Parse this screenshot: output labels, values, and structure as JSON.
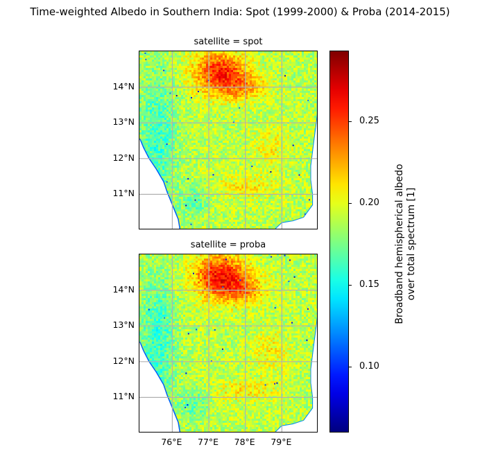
{
  "figure": {
    "title": "Time-weighted Albedo in Southern India: Spot (1999-2000) & Proba (2014-2015)"
  },
  "panels": [
    {
      "title": "satellite = spot",
      "satellite": "spot"
    },
    {
      "title": "satellite = proba",
      "satellite": "proba"
    }
  ],
  "map": {
    "lon_range": [
      75.1,
      80.0
    ],
    "lat_range": [
      10.0,
      15.0
    ],
    "gridlines": true,
    "x_ticks": [
      {
        "value": 76,
        "label": "76°E"
      },
      {
        "value": 77,
        "label": "77°E"
      },
      {
        "value": 78,
        "label": "78°E"
      },
      {
        "value": 79,
        "label": "79°E"
      }
    ],
    "y_ticks": [
      {
        "value": 14,
        "label": "14°N"
      },
      {
        "value": 13,
        "label": "13°N"
      },
      {
        "value": 12,
        "label": "12°N"
      },
      {
        "value": 11,
        "label": "11°N"
      }
    ]
  },
  "colorbar": {
    "label_line1": "Broadband hemispherical albedo",
    "label_line2": "over total spectrum [1]",
    "colormap": "jet",
    "range": [
      0.06,
      0.293
    ],
    "ticks": [
      {
        "value": 0.1,
        "label": "0.10"
      },
      {
        "value": 0.15,
        "label": "0.15"
      },
      {
        "value": 0.2,
        "label": "0.20"
      },
      {
        "value": 0.25,
        "label": "0.25"
      }
    ]
  },
  "colors": {
    "grid": "#b0b0b0",
    "ocean": "#ffffff",
    "background": "#ffffff"
  }
}
